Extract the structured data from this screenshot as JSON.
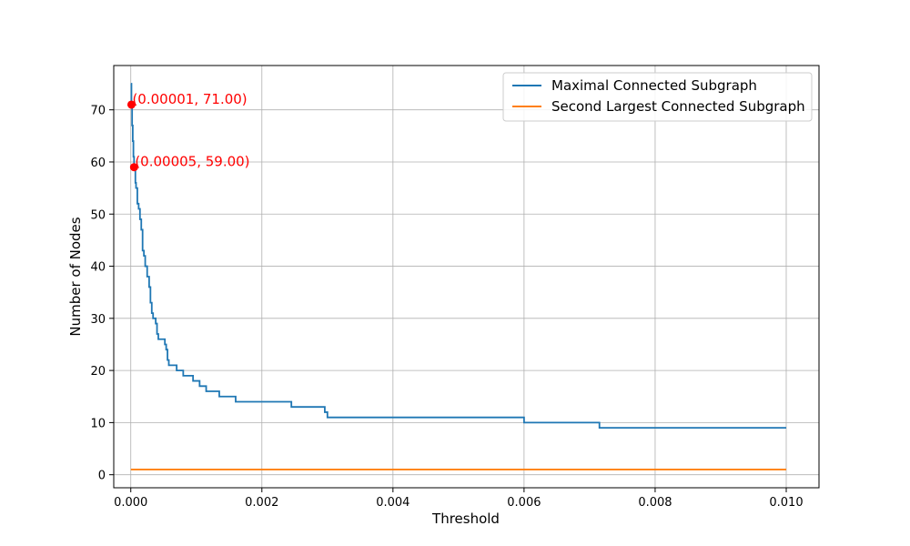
{
  "chart_data": {
    "type": "line",
    "xlabel": "Threshold",
    "ylabel": "Number of Nodes",
    "xlim": [
      -0.00026,
      0.0105
    ],
    "ylim": [
      -2.5,
      78.5
    ],
    "x_ticks": [
      0,
      0.002,
      0.004,
      0.006,
      0.008,
      0.01
    ],
    "x_tick_labels": [
      "0.000",
      "0.002",
      "0.004",
      "0.006",
      "0.008",
      "0.010"
    ],
    "y_ticks": [
      0,
      10,
      20,
      30,
      40,
      50,
      60,
      70
    ],
    "y_tick_labels": [
      "0",
      "10",
      "20",
      "30",
      "40",
      "50",
      "60",
      "70"
    ],
    "grid": true,
    "legend_position": "top-right",
    "series": [
      {
        "name": "Maximal Connected Subgraph",
        "color": "#1f77b4",
        "x": [
          0,
          1e-05,
          2e-05,
          3e-05,
          4e-05,
          5e-05,
          7e-05,
          8e-05,
          0.0001,
          0.00012,
          0.00014,
          0.00016,
          0.00018,
          0.0002,
          0.00022,
          0.00025,
          0.00028,
          0.0003,
          0.00032,
          0.00034,
          0.00036,
          0.00038,
          0.0004,
          0.00042,
          0.00045,
          0.0005,
          0.00052,
          0.00054,
          0.00056,
          0.00058,
          0.0006,
          0.00065,
          0.0007,
          0.00075,
          0.0008,
          0.00085,
          0.0009,
          0.00095,
          0.001,
          0.00105,
          0.0011,
          0.00115,
          0.0012,
          0.00125,
          0.0013,
          0.00135,
          0.0014,
          0.00145,
          0.0015,
          0.00155,
          0.0016,
          0.0018,
          0.002,
          0.0022,
          0.0024,
          0.00245,
          0.0026,
          0.0028,
          0.00294,
          0.00296,
          0.00298,
          0.003,
          0.0035,
          0.004,
          0.0045,
          0.005,
          0.0055,
          0.0059,
          0.00595,
          0.006,
          0.0065,
          0.007,
          0.0071,
          0.00715,
          0.0075,
          0.008,
          0.0085,
          0.009,
          0.0095,
          0.01
        ],
        "y": [
          75,
          71,
          67,
          64,
          61,
          59,
          56,
          55,
          52,
          51,
          49,
          47,
          43,
          42,
          40,
          38,
          36,
          33,
          31,
          30,
          30,
          29,
          27,
          26,
          26,
          26,
          25,
          24,
          22,
          21,
          21,
          21,
          20,
          20,
          19,
          19,
          19,
          18,
          18,
          17,
          17,
          16,
          16,
          16,
          16,
          15,
          15,
          15,
          15,
          15,
          14,
          14,
          14,
          14,
          14,
          13,
          13,
          13,
          13,
          12,
          12,
          11,
          11,
          11,
          11,
          11,
          11,
          11,
          11,
          10,
          10,
          10,
          10,
          9,
          9,
          9,
          9,
          9,
          9,
          9
        ]
      },
      {
        "name": "Second Largest Connected Subgraph",
        "color": "#ff7f0e",
        "x": [
          0,
          0.01
        ],
        "y": [
          1,
          1
        ]
      }
    ],
    "annotations": [
      {
        "x": 1e-05,
        "y": 71,
        "text": "(0.00001, 71.00)",
        "color": "#ff0000"
      },
      {
        "x": 5e-05,
        "y": 59,
        "text": "(0.00005, 59.00)",
        "color": "#ff0000"
      }
    ]
  }
}
